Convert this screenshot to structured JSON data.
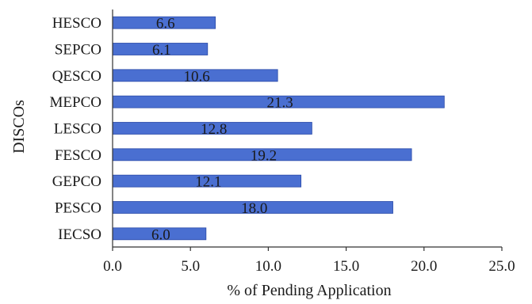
{
  "chart_data": {
    "type": "bar",
    "orientation": "horizontal",
    "categories": [
      "HESCO",
      "SEPCO",
      "QESCO",
      "MEPCO",
      "LESCO",
      "FESCO",
      "GEPCO",
      "PESCO",
      "IECSO"
    ],
    "values": [
      6.6,
      6.1,
      10.6,
      21.3,
      12.8,
      19.2,
      12.1,
      18.0,
      6.0
    ],
    "data_labels": [
      "6.6",
      "6.1",
      "10.6",
      "21.3",
      "12.8",
      "19.2",
      "12.1",
      "18.0",
      "6.0"
    ],
    "title": "",
    "xlabel": "% of Pending Application",
    "ylabel": "DISCOs",
    "xlim": [
      0,
      25
    ],
    "xticks": [
      0,
      5,
      10,
      15,
      20,
      25
    ],
    "xtick_labels": [
      "0.0",
      "5.0",
      "10.0",
      "15.0",
      "20.0",
      "25.0"
    ],
    "grid": false,
    "legend": "none",
    "bar_color": "#4a6fd1",
    "bar_edge_color": "#2a4aa8"
  }
}
